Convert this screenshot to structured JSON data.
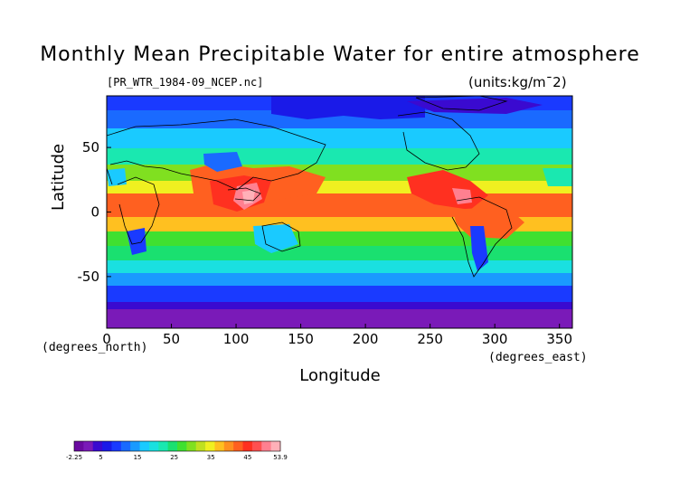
{
  "title": "Monthly Mean Precipitable Water for entire atmosphere",
  "source": "[PR_WTR_1984-09_NCEP.nc]",
  "units": "(units:kg/m¯2)",
  "axes": {
    "xlabel": "Longitude",
    "ylabel": "Latitude",
    "x_unit": "(degrees_east)",
    "y_unit": "(degrees_north)",
    "x_ticks": [
      0,
      50,
      100,
      150,
      200,
      250,
      300,
      350
    ],
    "y_ticks": [
      50,
      0,
      -50
    ],
    "x_range": [
      0,
      360
    ],
    "y_range": [
      -90,
      90
    ]
  },
  "colorbar": {
    "min": -2.25,
    "max": 53.9,
    "tick_labels": [
      "-2.25",
      "5",
      "15",
      "25",
      "35",
      "45",
      "53.9"
    ],
    "tick_values": [
      -2.25,
      5,
      15,
      25,
      35,
      45,
      53.9
    ],
    "colors": [
      "#6a0aa0",
      "#7a1ab8",
      "#3a0ad0",
      "#1a1ae8",
      "#1a3aff",
      "#1a6aff",
      "#1a9aff",
      "#1acaff",
      "#1ae0e0",
      "#1ae8b0",
      "#1ae070",
      "#40e030",
      "#80e020",
      "#c0e020",
      "#f0f020",
      "#ffc020",
      "#ff9020",
      "#ff6020",
      "#ff3020",
      "#ff5050",
      "#ff8090",
      "#ffb0b8"
    ]
  }
}
